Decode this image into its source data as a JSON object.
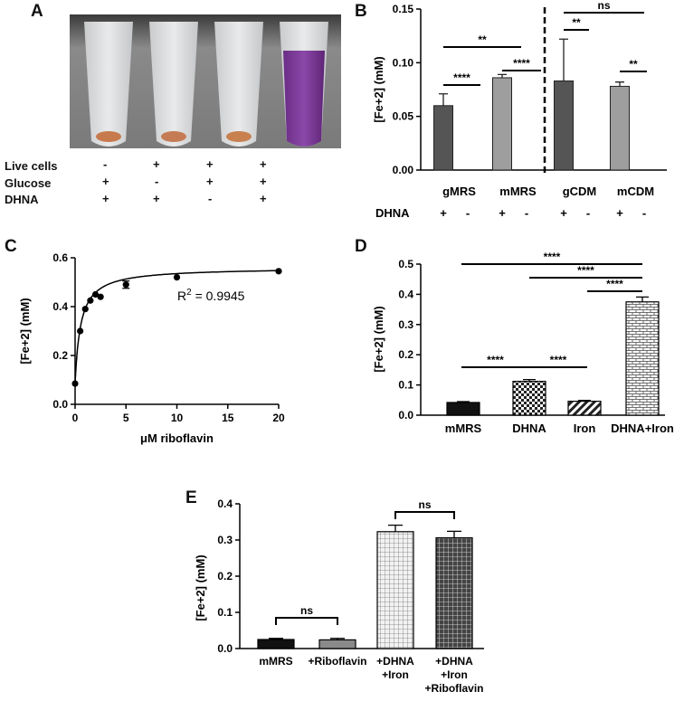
{
  "panel_labels": {
    "a": "A",
    "b": "B",
    "c": "C",
    "d": "D",
    "e": "E"
  },
  "panel_a": {
    "row_labels": [
      "Live cells",
      "Glucose",
      "DHNA"
    ],
    "columns": [
      [
        "-",
        "+",
        "+"
      ],
      [
        "+",
        "-",
        "+"
      ],
      [
        "+",
        "+",
        "-"
      ],
      [
        "+",
        "+",
        "+"
      ]
    ]
  },
  "chart_data": [
    {
      "id": "B",
      "type": "bar",
      "ylabel": "[Fe+2] (mM)",
      "ylim": [
        0,
        0.15
      ],
      "yticks": [
        "0.00",
        "0.05",
        "0.10",
        "0.15"
      ],
      "groups": [
        "gMRS",
        "mMRS",
        "gCDM",
        "mCDM"
      ],
      "row_label": "DHNA",
      "dhna_signs": [
        "+",
        "-",
        "+",
        "-",
        "+",
        "-",
        "+",
        "-"
      ],
      "values": [
        0.06,
        0.0,
        0.086,
        0.0,
        0.083,
        0.0,
        0.078,
        0.0
      ],
      "errors": [
        0.011,
        0,
        0.003,
        0,
        0.039,
        0,
        0.004,
        0
      ],
      "colors": [
        "#555555",
        "#555555",
        "#9e9e9e",
        "#9e9e9e",
        "#555555",
        "#555555",
        "#9e9e9e",
        "#9e9e9e"
      ],
      "significance": [
        "****",
        "**",
        "****",
        "ns",
        "**",
        "**"
      ]
    },
    {
      "id": "C",
      "type": "scatter",
      "xlabel": "μM riboflavin",
      "ylabel": "[Fe+2] (mM)",
      "xlim": [
        0,
        20
      ],
      "ylim": [
        0,
        0.6
      ],
      "xticks": [
        "0",
        "5",
        "10",
        "15",
        "20"
      ],
      "yticks": [
        "0.0",
        "0.2",
        "0.4",
        "0.6"
      ],
      "x": [
        0,
        0.5,
        1,
        1.5,
        2,
        2.5,
        5,
        10,
        20
      ],
      "y": [
        0.085,
        0.3,
        0.39,
        0.425,
        0.45,
        0.44,
        0.49,
        0.52,
        0.545
      ],
      "errors": [
        0,
        0,
        0,
        0,
        0,
        0,
        0.015,
        0,
        0
      ],
      "fit_vmax": 0.56,
      "fit_km": 0.55,
      "fit_y0": 0.085,
      "annotation": "R",
      "annotation_sup": "2",
      "annotation_rest": " = 0.9945"
    },
    {
      "id": "D",
      "type": "bar",
      "ylabel": "[Fe+2] (mM)",
      "ylim": [
        0,
        0.5
      ],
      "yticks": [
        "0.0",
        "0.1",
        "0.2",
        "0.3",
        "0.4",
        "0.5"
      ],
      "categories": [
        "mMRS",
        "DHNA",
        "Iron",
        "DHNA+Iron"
      ],
      "values": [
        0.042,
        0.112,
        0.046,
        0.375
      ],
      "errors": [
        0.003,
        0.006,
        0.003,
        0.016
      ],
      "patterns": [
        "solid",
        "checker",
        "diagonal",
        "brick"
      ],
      "significance": [
        "****",
        "****",
        "****",
        "****",
        "****"
      ]
    },
    {
      "id": "E",
      "type": "bar",
      "ylabel": "[Fe+2] (mM)",
      "ylim": [
        0,
        0.4
      ],
      "yticks": [
        "0.0",
        "0.1",
        "0.2",
        "0.3",
        "0.4"
      ],
      "categories": [
        [
          "mMRS"
        ],
        [
          "+Riboflavin"
        ],
        [
          "+DHNA",
          "+Iron"
        ],
        [
          "+DHNA",
          "+Iron",
          "+Riboflavin"
        ]
      ],
      "values": [
        0.025,
        0.024,
        0.323,
        0.306
      ],
      "errors": [
        0.003,
        0.004,
        0.018,
        0.018
      ],
      "patterns": [
        "solid",
        "gray",
        "lightcheck",
        "darkcheck"
      ],
      "significance": [
        "ns",
        "ns"
      ]
    }
  ]
}
